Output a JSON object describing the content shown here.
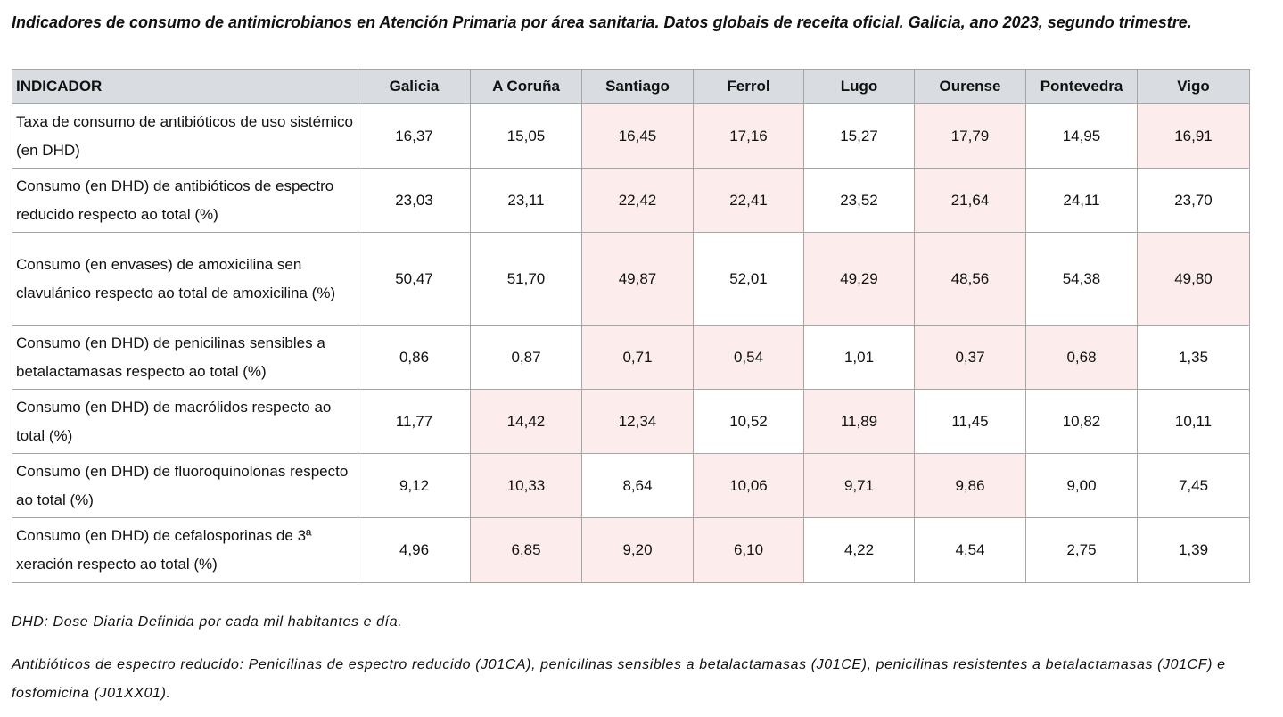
{
  "title": "Indicadores de consumo de antimicrobianos en Atención Primaria por área sanitaria. Datos globais de receita oficial. Galicia, ano 2023, segundo trimestre.",
  "colors": {
    "header_bg": "#d9dde1",
    "highlight": "#fdecec",
    "border": "#a6a6a6"
  },
  "table": {
    "headers": [
      "INDICADOR",
      "Galicia",
      "A Coruña",
      "Santiago",
      "Ferrol",
      "Lugo",
      "Ourense",
      "Pontevedra",
      "Vigo"
    ],
    "rows": [
      {
        "indicator": "Taxa de consumo de antibióticos de uso sistémico (en DHD)",
        "values": [
          "16,37",
          "15,05",
          "16,45",
          "17,16",
          "15,27",
          "17,79",
          "14,95",
          "16,91"
        ],
        "highlighted": [
          false,
          false,
          true,
          true,
          false,
          true,
          false,
          true
        ]
      },
      {
        "indicator": "Consumo (en DHD) de antibióticos de espectro reducido respecto ao total (%)",
        "values": [
          "23,03",
          "23,11",
          "22,42",
          "22,41",
          "23,52",
          "21,64",
          "24,11",
          "23,70"
        ],
        "highlighted": [
          false,
          false,
          true,
          true,
          false,
          true,
          false,
          false
        ]
      },
      {
        "indicator": "Consumo (en envases) de amoxicilina sen clavulánico respecto ao total de amoxicilina (%)",
        "values": [
          "50,47",
          "51,70",
          "49,87",
          "52,01",
          "49,29",
          "48,56",
          "54,38",
          "49,80"
        ],
        "highlighted": [
          false,
          false,
          true,
          false,
          true,
          true,
          false,
          true
        ]
      },
      {
        "indicator": "Consumo (en DHD) de penicilinas sensibles a betalactamasas respecto ao total (%)",
        "values": [
          "0,86",
          "0,87",
          "0,71",
          "0,54",
          "1,01",
          "0,37",
          "0,68",
          "1,35"
        ],
        "highlighted": [
          false,
          false,
          true,
          true,
          false,
          true,
          true,
          false
        ]
      },
      {
        "indicator": "Consumo (en DHD) de macrólidos respecto ao total (%)",
        "values": [
          "11,77",
          "14,42",
          "12,34",
          "10,52",
          "11,89",
          "11,45",
          "10,82",
          "10,11"
        ],
        "highlighted": [
          false,
          true,
          true,
          false,
          true,
          false,
          false,
          false
        ]
      },
      {
        "indicator": "Consumo (en DHD) de fluoroquinolonas respecto ao total (%)",
        "values": [
          "9,12",
          "10,33",
          "8,64",
          "10,06",
          "9,71",
          "9,86",
          "9,00",
          "7,45"
        ],
        "highlighted": [
          false,
          true,
          false,
          true,
          true,
          true,
          false,
          false
        ]
      },
      {
        "indicator": "Consumo (en DHD) de cefalosporinas de 3ª xeración respecto ao total (%)",
        "values": [
          "4,96",
          "6,85",
          "9,20",
          "6,10",
          "4,22",
          "4,54",
          "2,75",
          "1,39"
        ],
        "highlighted": [
          false,
          true,
          true,
          true,
          false,
          false,
          false,
          false
        ]
      }
    ]
  },
  "notes": [
    "DHD: Dose Diaria Definida por cada mil habitantes e día.",
    "Antibióticos de espectro reducido: Penicilinas de espectro reducido (J01CA), penicilinas sensibles a betalactamasas (J01CE), penicilinas resistentes a betalactamasas (J01CF) e fosfomicina (J01XX01)."
  ]
}
